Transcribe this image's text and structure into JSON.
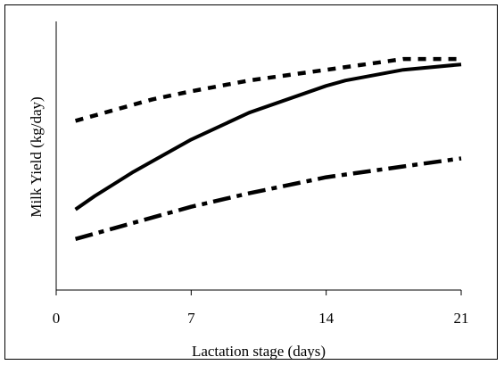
{
  "chart_data": {
    "type": "line",
    "title": "",
    "xlabel": "Lactation stage (days)",
    "ylabel": "Milk Yield (kg/day)",
    "xlim": [
      0,
      21
    ],
    "x_ticks": [
      "0",
      "7",
      "14",
      "21"
    ],
    "y_tick_labels_shown": false,
    "grid": false,
    "legend": "none",
    "series": [
      {
        "style": "solid",
        "x": [
          1,
          2,
          4,
          5,
          7,
          10,
          14,
          15,
          18,
          21
        ],
        "y": [
          0.3,
          0.35,
          0.44,
          0.48,
          0.56,
          0.66,
          0.76,
          0.78,
          0.82,
          0.84
        ]
      },
      {
        "style": "short-dash",
        "x": [
          1,
          3,
          5,
          7,
          10,
          14,
          16,
          18,
          21
        ],
        "y": [
          0.63,
          0.67,
          0.71,
          0.74,
          0.78,
          0.82,
          0.84,
          0.86,
          0.86
        ]
      },
      {
        "style": "dash-dot",
        "x": [
          1,
          2,
          5,
          7,
          10,
          14,
          18,
          21
        ],
        "y": [
          0.19,
          0.21,
          0.27,
          0.31,
          0.36,
          0.42,
          0.46,
          0.49
        ]
      }
    ]
  }
}
